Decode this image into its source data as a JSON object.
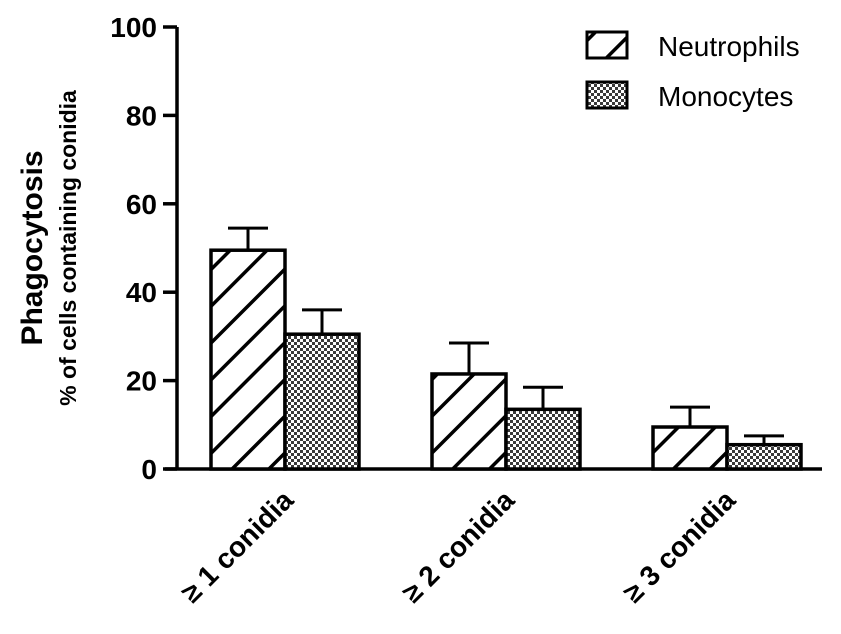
{
  "chart_data": {
    "type": "bar",
    "title": "",
    "ylabel": "Phagocytosis",
    "ylabel_sub": "% of cells containing conidia",
    "xlabel": "",
    "ylim": [
      0,
      100
    ],
    "yticks": [
      "0",
      "20",
      "40",
      "60",
      "80",
      "100"
    ],
    "categories": [
      "≥ 1 conidia",
      "≥ 2 conidia",
      "≥ 3 conidia"
    ],
    "series": [
      {
        "name": "Neutrophils",
        "pattern": "diagonal-hatch",
        "values": [
          49.5,
          21.5,
          9.5
        ],
        "errors": [
          5,
          7,
          4.5
        ]
      },
      {
        "name": "Monocytes",
        "pattern": "checkered",
        "values": [
          30.5,
          13.5,
          5.5
        ],
        "errors": [
          5.5,
          5,
          2
        ]
      }
    ],
    "legend_position": "top-right",
    "error_bars": "upper",
    "colors": {
      "stroke": "#000000",
      "fill": "#ffffff"
    }
  }
}
